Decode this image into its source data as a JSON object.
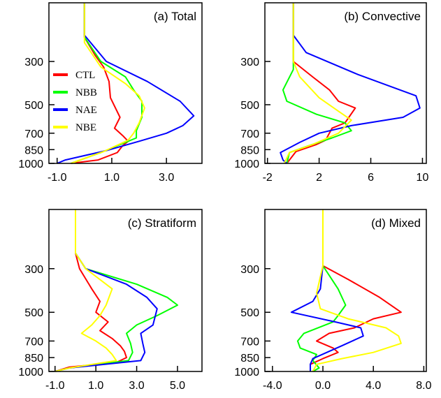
{
  "chart_data": [
    {
      "type": "line",
      "title": "(a) Total",
      "y_scale": "pressure (inverted, log)",
      "ylim": [
        1000,
        150
      ],
      "xlim": [
        -1.3,
        4.3
      ],
      "xticks": [
        -1.0,
        1.0,
        3.0
      ],
      "xtick_labels": [
        "-1.0",
        "1.0",
        "3.0"
      ],
      "yticks": [
        300,
        500,
        700,
        850,
        1000
      ],
      "ytick_labels": [
        "300",
        "500",
        "700",
        "850",
        "1000"
      ],
      "legend": {
        "placement": "left-middle",
        "entries": [
          "CTL",
          "NBB",
          "NAE",
          "NBE"
        ]
      },
      "series": [
        {
          "name": "CTL",
          "color": "#ff0000",
          "points": [
            [
              0,
              150
            ],
            [
              0,
              225
            ],
            [
              0.4,
              280
            ],
            [
              0.7,
              320
            ],
            [
              0.9,
              380
            ],
            [
              0.95,
              460
            ],
            [
              1.3,
              580
            ],
            [
              1.1,
              660
            ],
            [
              1.4,
              720
            ],
            [
              1.6,
              770
            ],
            [
              1.4,
              810
            ],
            [
              1.2,
              880
            ],
            [
              0.5,
              960
            ],
            [
              -0.5,
              1000
            ]
          ]
        },
        {
          "name": "NBB",
          "color": "#00ff00",
          "points": [
            [
              0,
              150
            ],
            [
              0,
              225
            ],
            [
              0.6,
              300
            ],
            [
              1.5,
              360
            ],
            [
              1.8,
              420
            ],
            [
              2.1,
              480
            ],
            [
              2.1,
              580
            ],
            [
              1.9,
              680
            ],
            [
              1.9,
              740
            ],
            [
              0.6,
              880
            ],
            [
              -0.5,
              1000
            ]
          ]
        },
        {
          "name": "NAE",
          "color": "#0000ff",
          "points": [
            [
              0,
              150
            ],
            [
              0,
              220
            ],
            [
              0.8,
              300
            ],
            [
              2.3,
              380
            ],
            [
              3.5,
              480
            ],
            [
              4.0,
              570
            ],
            [
              3.6,
              640
            ],
            [
              3.0,
              700
            ],
            [
              2.0,
              770
            ],
            [
              0.8,
              860
            ],
            [
              -0.7,
              960
            ],
            [
              -1.0,
              1000
            ]
          ]
        },
        {
          "name": "NBE",
          "color": "#ffff00",
          "points": [
            [
              0,
              150
            ],
            [
              0,
              240
            ],
            [
              0.6,
              320
            ],
            [
              1.5,
              390
            ],
            [
              2.0,
              450
            ],
            [
              2.2,
              520
            ],
            [
              2.0,
              620
            ],
            [
              1.8,
              700
            ],
            [
              1.6,
              760
            ],
            [
              0.7,
              870
            ],
            [
              -0.5,
              1000
            ]
          ]
        }
      ]
    },
    {
      "type": "line",
      "title": "(b) Convective",
      "y_scale": "pressure (inverted, log)",
      "ylim": [
        1000,
        150
      ],
      "xlim": [
        -2.2,
        10.3
      ],
      "xticks": [
        -2,
        2,
        6,
        10
      ],
      "xtick_labels": [
        "-2",
        "2",
        "6",
        "10"
      ],
      "yticks": [
        300,
        500,
        700,
        850,
        1000
      ],
      "ytick_labels": [
        "300",
        "500",
        "700",
        "850",
        "1000"
      ],
      "series": [
        {
          "name": "CTL",
          "color": "#ff0000",
          "points": [
            [
              0,
              150
            ],
            [
              0,
              300
            ],
            [
              1.5,
              360
            ],
            [
              2.8,
              420
            ],
            [
              3.5,
              480
            ],
            [
              4.8,
              520
            ],
            [
              4.0,
              620
            ],
            [
              3.0,
              660
            ],
            [
              2.5,
              760
            ],
            [
              1.8,
              800
            ],
            [
              0.2,
              870
            ],
            [
              -0.5,
              1000
            ]
          ]
        },
        {
          "name": "NBB",
          "color": "#00ff00",
          "points": [
            [
              0,
              150
            ],
            [
              0,
              330
            ],
            [
              -0.8,
              420
            ],
            [
              -0.5,
              480
            ],
            [
              1.8,
              560
            ],
            [
              4.0,
              620
            ],
            [
              4.5,
              680
            ],
            [
              3.0,
              740
            ],
            [
              1.0,
              820
            ],
            [
              -0.3,
              880
            ],
            [
              -0.5,
              1000
            ]
          ]
        },
        {
          "name": "NAE",
          "color": "#0000ff",
          "points": [
            [
              0,
              150
            ],
            [
              0,
              220
            ],
            [
              1.0,
              270
            ],
            [
              5.0,
              350
            ],
            [
              9.5,
              450
            ],
            [
              9.8,
              520
            ],
            [
              8.5,
              580
            ],
            [
              4.5,
              640
            ],
            [
              2.0,
              700
            ],
            [
              0.5,
              780
            ],
            [
              -1.0,
              880
            ],
            [
              -0.8,
              960
            ],
            [
              -0.5,
              1000
            ]
          ]
        },
        {
          "name": "NBE",
          "color": "#ffff00",
          "points": [
            [
              0,
              150
            ],
            [
              0,
              300
            ],
            [
              0.5,
              360
            ],
            [
              2.0,
              460
            ],
            [
              3.5,
              540
            ],
            [
              4.5,
              600
            ],
            [
              3.5,
              700
            ],
            [
              1.5,
              800
            ],
            [
              -0.3,
              880
            ],
            [
              -0.7,
              1000
            ]
          ]
        }
      ]
    },
    {
      "type": "line",
      "title": "(c) Stratiform",
      "y_scale": "pressure (inverted, log)",
      "ylim": [
        1000,
        150
      ],
      "xlim": [
        -1.3,
        6.2
      ],
      "xticks": [
        -1.0,
        1.0,
        3.0,
        5.0
      ],
      "xtick_labels": [
        "-1.0",
        "1.0",
        "3.0",
        "5.0"
      ],
      "yticks": [
        300,
        500,
        700,
        850,
        1000
      ],
      "ytick_labels": [
        "300",
        "500",
        "700",
        "850",
        "1000"
      ],
      "series": [
        {
          "name": "CTL",
          "color": "#ff0000",
          "points": [
            [
              0,
              150
            ],
            [
              0,
              250
            ],
            [
              0.2,
              300
            ],
            [
              0.8,
              380
            ],
            [
              1.2,
              440
            ],
            [
              1.0,
              500
            ],
            [
              1.6,
              560
            ],
            [
              1.2,
              620
            ],
            [
              1.8,
              680
            ],
            [
              2.2,
              740
            ],
            [
              2.4,
              790
            ],
            [
              2.5,
              850
            ],
            [
              2.0,
              900
            ],
            [
              -0.3,
              950
            ],
            [
              -1.0,
              1000
            ]
          ]
        },
        {
          "name": "NBB",
          "color": "#00ff00",
          "points": [
            [
              0,
              150
            ],
            [
              0,
              250
            ],
            [
              0.5,
              300
            ],
            [
              3.0,
              360
            ],
            [
              4.5,
              420
            ],
            [
              5.0,
              460
            ],
            [
              4.0,
              520
            ],
            [
              3.0,
              580
            ],
            [
              2.5,
              640
            ],
            [
              2.7,
              720
            ],
            [
              2.8,
              800
            ],
            [
              2.6,
              880
            ],
            [
              -0.3,
              960
            ],
            [
              -1.0,
              1000
            ]
          ]
        },
        {
          "name": "NAE",
          "color": "#0000ff",
          "points": [
            [
              0,
              150
            ],
            [
              0,
              250
            ],
            [
              0.5,
              300
            ],
            [
              2.5,
              360
            ],
            [
              3.5,
              420
            ],
            [
              4.0,
              480
            ],
            [
              3.8,
              580
            ],
            [
              3.2,
              640
            ],
            [
              3.3,
              720
            ],
            [
              3.4,
              800
            ],
            [
              3.2,
              880
            ],
            [
              -0.3,
              960
            ],
            [
              -1.0,
              1000
            ]
          ]
        },
        {
          "name": "NBE",
          "color": "#ffff00",
          "points": [
            [
              0,
              150
            ],
            [
              0,
              250
            ],
            [
              0.5,
              300
            ],
            [
              1.8,
              380
            ],
            [
              1.5,
              460
            ],
            [
              1.2,
              520
            ],
            [
              0.8,
              580
            ],
            [
              0.3,
              640
            ],
            [
              1.0,
              700
            ],
            [
              1.5,
              760
            ],
            [
              1.8,
              820
            ],
            [
              2.0,
              880
            ],
            [
              -0.3,
              960
            ],
            [
              -1.0,
              1000
            ]
          ]
        }
      ]
    },
    {
      "type": "line",
      "title": "(d) Mixed",
      "y_scale": "pressure (inverted, log)",
      "ylim": [
        1000,
        150
      ],
      "xlim": [
        -4.6,
        8.2
      ],
      "xticks": [
        -4.0,
        0.0,
        4.0,
        8.0
      ],
      "xtick_labels": [
        "-4.0",
        "0.0",
        "4.0",
        "8.0"
      ],
      "yticks": [
        300,
        500,
        700,
        850,
        1000
      ],
      "ytick_labels": [
        "300",
        "500",
        "700",
        "850",
        "1000"
      ],
      "series": [
        {
          "name": "CTL",
          "color": "#ff0000",
          "points": [
            [
              0,
              150
            ],
            [
              0,
              290
            ],
            [
              2.0,
              340
            ],
            [
              4.5,
              420
            ],
            [
              6.2,
              500
            ],
            [
              4.0,
              540
            ],
            [
              2.5,
              600
            ],
            [
              0.5,
              640
            ],
            [
              -0.5,
              700
            ],
            [
              0.8,
              760
            ],
            [
              1.2,
              800
            ],
            [
              0,
              860
            ],
            [
              -1.0,
              920
            ],
            [
              -1.0,
              1000
            ]
          ]
        },
        {
          "name": "NBB",
          "color": "#00ff00",
          "points": [
            [
              0,
              150
            ],
            [
              0,
              290
            ],
            [
              1.2,
              380
            ],
            [
              1.8,
              460
            ],
            [
              1.2,
              520
            ],
            [
              0.8,
              560
            ],
            [
              -1.5,
              640
            ],
            [
              -2.0,
              700
            ],
            [
              -1.8,
              760
            ],
            [
              -0.5,
              820
            ],
            [
              -0.8,
              880
            ],
            [
              -0.3,
              960
            ],
            [
              -0.8,
              1000
            ]
          ]
        },
        {
          "name": "NAE",
          "color": "#0000ff",
          "points": [
            [
              0,
              150
            ],
            [
              0,
              290
            ],
            [
              -0.2,
              380
            ],
            [
              -0.8,
              440
            ],
            [
              -2.5,
              500
            ],
            [
              1.0,
              560
            ],
            [
              3.0,
              600
            ],
            [
              3.2,
              660
            ],
            [
              1.5,
              740
            ],
            [
              0.5,
              790
            ],
            [
              -0.8,
              860
            ],
            [
              -1.0,
              920
            ],
            [
              -1.0,
              1000
            ]
          ]
        },
        {
          "name": "NBE",
          "color": "#ffff00",
          "points": [
            [
              0,
              150
            ],
            [
              0,
              290
            ],
            [
              -0.5,
              400
            ],
            [
              -0.2,
              480
            ],
            [
              2.0,
              540
            ],
            [
              5.0,
              600
            ],
            [
              6.0,
              660
            ],
            [
              6.2,
              720
            ],
            [
              4.0,
              800
            ],
            [
              1.5,
              860
            ],
            [
              -0.5,
              920
            ],
            [
              -0.8,
              1000
            ]
          ]
        }
      ]
    }
  ]
}
